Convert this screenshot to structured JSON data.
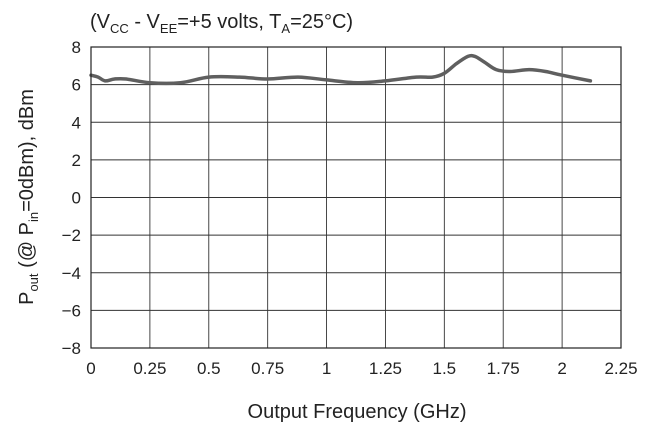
{
  "chart_data": {
    "type": "line",
    "title": {
      "pre": "(V",
      "sub1": "CC",
      "mid1": " - V",
      "sub2": "EE",
      "mid2": "=+5 volts, T",
      "sub3": "A",
      "post": "=25°C)"
    },
    "xlabel": "Output Frequency (GHz)",
    "ylabel": {
      "p": "P",
      "sub_out": "out",
      "mid": " (@ P",
      "sub_in": "in",
      "post": "=0dBm), dBm"
    },
    "xlim": [
      0,
      2.25
    ],
    "ylim": [
      -8,
      8
    ],
    "xticks": [
      0,
      0.25,
      0.5,
      0.75,
      1,
      1.25,
      1.5,
      1.75,
      2,
      2.25
    ],
    "xtick_labels": [
      "0",
      "0.25",
      "0.5",
      "0.75",
      "1",
      "1.25",
      "1.5",
      "1.75",
      "2",
      "2.25"
    ],
    "yticks": [
      8,
      6,
      4,
      2,
      0,
      -2,
      -4,
      -6,
      -8
    ],
    "ytick_labels": [
      "8",
      "6",
      "4",
      "2",
      "0",
      "−2",
      "−4",
      "−6",
      "−8"
    ],
    "grid": true,
    "series": [
      {
        "color": "#5f5f5f",
        "x": [
          0,
          0.03,
          0.06,
          0.1,
          0.15,
          0.25,
          0.38,
          0.5,
          0.63,
          0.75,
          0.88,
          1.0,
          1.13,
          1.25,
          1.38,
          1.45,
          1.5,
          1.55,
          1.6,
          1.63,
          1.67,
          1.72,
          1.78,
          1.86,
          1.93,
          2.0,
          2.12
        ],
        "y": [
          6.5,
          6.4,
          6.2,
          6.3,
          6.3,
          6.1,
          6.1,
          6.4,
          6.4,
          6.3,
          6.4,
          6.25,
          6.1,
          6.2,
          6.4,
          6.4,
          6.6,
          7.1,
          7.5,
          7.5,
          7.2,
          6.8,
          6.7,
          6.8,
          6.7,
          6.5,
          6.2
        ]
      }
    ]
  }
}
